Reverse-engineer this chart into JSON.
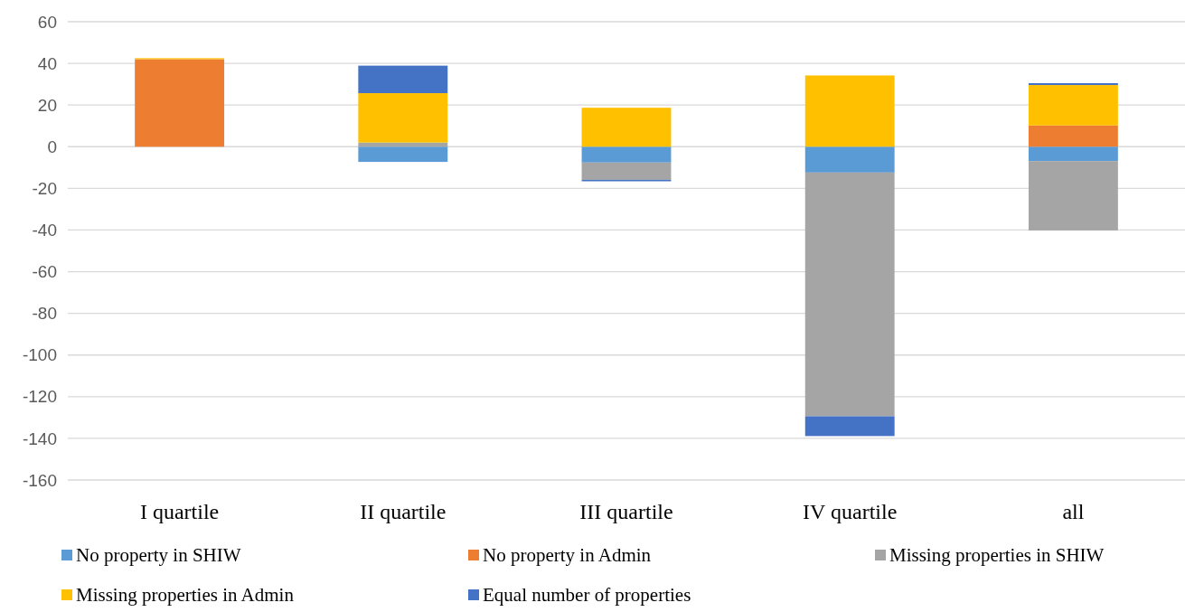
{
  "chart_data": {
    "type": "bar",
    "stacked": true,
    "categories": [
      "I quartile",
      "II quartile",
      "III quartile",
      "IV quartile",
      "all"
    ],
    "series": [
      {
        "name": "No property in SHIW",
        "color": "#5b9bd5",
        "values": [
          0,
          -7.3,
          -7.6,
          -12.4,
          -6.9
        ]
      },
      {
        "name": "No property in Admin",
        "color": "#ed7d31",
        "values": [
          42,
          0,
          0,
          0,
          10.2
        ]
      },
      {
        "name": "Missing properties in SHIW",
        "color": "#a5a5a5",
        "values": [
          0,
          2,
          -8.3,
          -117,
          -33.3
        ]
      },
      {
        "name": "Missing properties in Admin",
        "color": "#ffc000",
        "values": [
          0.5,
          23.7,
          18.7,
          34.2,
          19.4
        ]
      },
      {
        "name": "Equal number of properties",
        "color": "#4472c4",
        "values": [
          0,
          13.2,
          -0.7,
          -9.5,
          0.9
        ]
      }
    ],
    "ylim": [
      -160,
      60
    ],
    "yticks": [
      -160,
      -140,
      -120,
      -100,
      -80,
      -60,
      -40,
      -20,
      0,
      20,
      40,
      60
    ],
    "grid": "y",
    "legend": "bottom"
  }
}
